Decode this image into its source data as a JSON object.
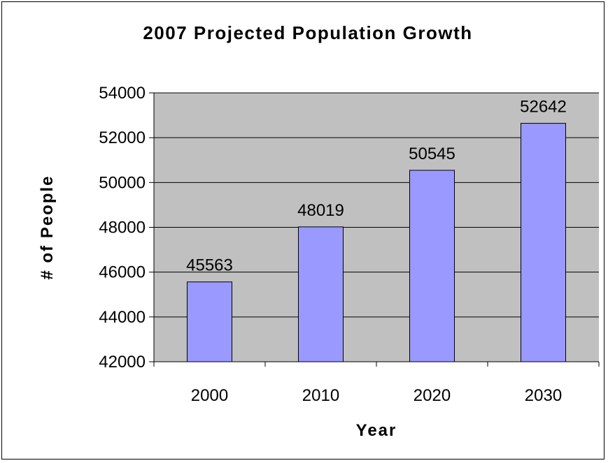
{
  "chart_data": {
    "type": "bar",
    "title": "2007 Projected Population Growth",
    "xlabel": "Year",
    "ylabel": "# of People",
    "categories": [
      "2000",
      "2010",
      "2020",
      "2030"
    ],
    "values": [
      45563,
      48019,
      50545,
      52642
    ],
    "ylim": [
      42000,
      54000
    ],
    "yticks": [
      42000,
      44000,
      46000,
      48000,
      50000,
      52000,
      54000
    ],
    "grid": true,
    "legend": "none",
    "colors": {
      "bar_fill": "#9999ff",
      "bar_stroke": "#000000",
      "plot_background": "#c0c0c0",
      "gridline": "#000000"
    }
  }
}
